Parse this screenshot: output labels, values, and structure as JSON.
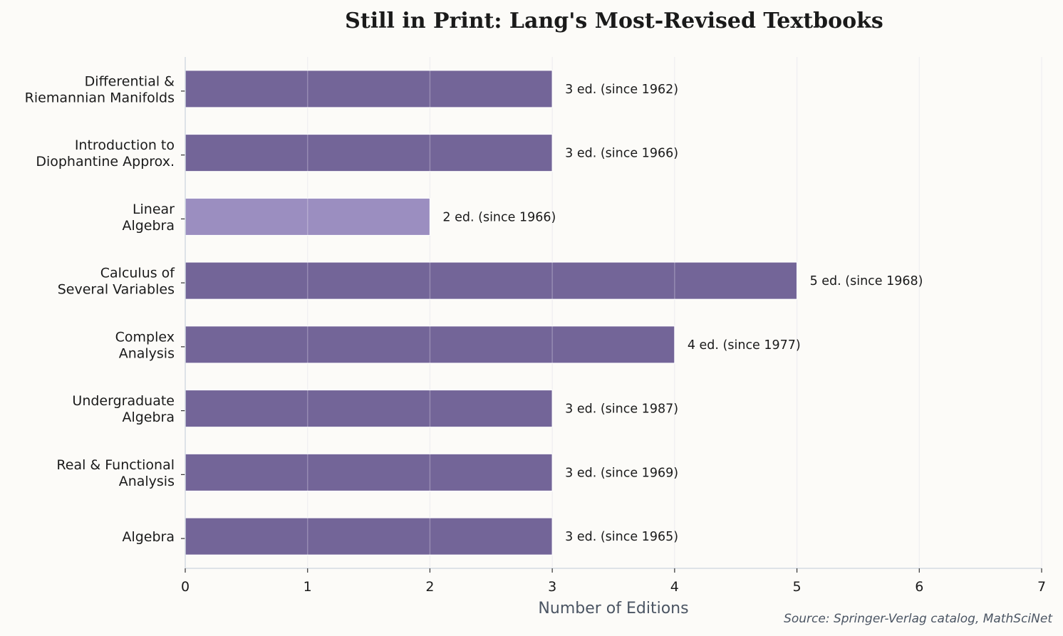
{
  "chart_data": {
    "type": "bar",
    "orientation": "horizontal",
    "title": "Still in Print: Lang's Most-Revised Textbooks",
    "xlabel": "Number of Editions",
    "ylabel": "",
    "xlim": [
      0,
      7
    ],
    "xticks": [
      "0",
      "1",
      "2",
      "3",
      "4",
      "5",
      "6",
      "7"
    ],
    "grid": "vertical",
    "categories": [
      [
        "Differential &",
        "Riemannian Manifolds"
      ],
      [
        "Introduction to",
        "Diophantine Approx."
      ],
      [
        "Linear",
        "Algebra"
      ],
      [
        "Calculus of",
        "Several Variables"
      ],
      [
        "Complex",
        "Analysis"
      ],
      [
        "Undergraduate",
        "Algebra"
      ],
      [
        "Real & Functional",
        "Analysis"
      ],
      [
        "Algebra"
      ]
    ],
    "values": [
      3,
      3,
      2,
      5,
      4,
      3,
      3,
      3
    ],
    "data_labels": [
      "3 ed. (since 1962)",
      "3 ed. (since 1966)",
      "2 ed. (since 1966)",
      "5 ed. (since 1968)",
      "4 ed. (since 1977)",
      "3 ed. (since 1987)",
      "3 ed. (since 1969)",
      "3 ed. (since 1965)"
    ],
    "bar_colors": [
      "#736598",
      "#736598",
      "#9b8ec0",
      "#736598",
      "#736598",
      "#736598",
      "#736598",
      "#736598"
    ],
    "source": "Source: Springer-Verlag catalog, MathSciNet"
  }
}
